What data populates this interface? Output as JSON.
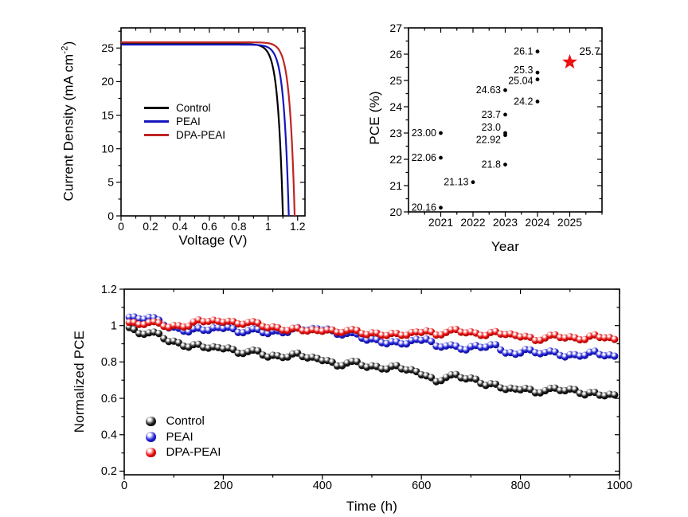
{
  "background": "#ffffff",
  "chart_data": [
    {
      "id": "jv_curves",
      "type": "line",
      "title": "",
      "xlabel": "Voltage (V)",
      "ylabel_main": "Current Density (mA cm",
      "ylabel_sup": "-2",
      "ylabel_close": ")",
      "xlim": [
        0,
        1.25
      ],
      "ylim": [
        0,
        28
      ],
      "xticks": [
        {
          "v": 0,
          "label": "0"
        },
        {
          "v": 0.2,
          "label": "0.2"
        },
        {
          "v": 0.4,
          "label": "0.4"
        },
        {
          "v": 0.6,
          "label": "0.6"
        },
        {
          "v": 0.8,
          "label": "0.8"
        },
        {
          "v": 1.0,
          "label": "1"
        },
        {
          "v": 1.2,
          "label": "1.2"
        }
      ],
      "yticks": [
        {
          "v": 0,
          "label": "0"
        },
        {
          "v": 5,
          "label": "5"
        },
        {
          "v": 10,
          "label": "10"
        },
        {
          "v": 15,
          "label": "15"
        },
        {
          "v": 20,
          "label": "20"
        },
        {
          "v": 25,
          "label": "25"
        }
      ],
      "xminor_step": 0.1,
      "yminor_step": 2.5,
      "series": [
        {
          "name": "Control",
          "color": "#000000",
          "jsc": 25.6,
          "voc": 1.1
        },
        {
          "name": "PEAI",
          "color": "#1515bb",
          "jsc": 25.5,
          "voc": 1.14
        },
        {
          "name": "DPA-PEAI",
          "color": "#c02424",
          "jsc": 25.85,
          "voc": 1.18
        }
      ],
      "legend_position": "center-left",
      "grid": false
    },
    {
      "id": "pce_progress",
      "type": "scatter",
      "title": "",
      "xlabel": "Year",
      "ylabel": "PCE (%)",
      "xlim": [
        2020,
        2026
      ],
      "ylim": [
        20,
        27
      ],
      "xticks": [
        {
          "v": 2021,
          "label": "2021"
        },
        {
          "v": 2022,
          "label": "2022"
        },
        {
          "v": 2023,
          "label": "2023"
        },
        {
          "v": 2024,
          "label": "2024"
        },
        {
          "v": 2025,
          "label": "2025"
        }
      ],
      "yticks": [
        {
          "v": 20,
          "label": "20"
        },
        {
          "v": 21,
          "label": "21"
        },
        {
          "v": 22,
          "label": "22"
        },
        {
          "v": 23,
          "label": "23"
        },
        {
          "v": 24,
          "label": "24"
        },
        {
          "v": 25,
          "label": "25"
        },
        {
          "v": 26,
          "label": "26"
        },
        {
          "v": 27,
          "label": "27"
        }
      ],
      "xminor_step": 0.5,
      "yminor_step": 0.5,
      "point_color": "#000000",
      "points": [
        {
          "x": 2021,
          "y": 20.16,
          "label": "20.16"
        },
        {
          "x": 2021,
          "y": 22.06,
          "label": "22.06"
        },
        {
          "x": 2021,
          "y": 23.0,
          "label": "23.00"
        },
        {
          "x": 2022,
          "y": 21.13,
          "label": "21.13"
        },
        {
          "x": 2023,
          "y": 21.8,
          "label": "21.8"
        },
        {
          "x": 2023,
          "y": 22.92,
          "label": "22.92",
          "ldy": 6
        },
        {
          "x": 2023,
          "y": 23.0,
          "label": "23.0",
          "ldy": -7
        },
        {
          "x": 2023,
          "y": 23.7,
          "label": "23.7"
        },
        {
          "x": 2023,
          "y": 24.63,
          "label": "24.63"
        },
        {
          "x": 2024,
          "y": 24.2,
          "label": "24.2"
        },
        {
          "x": 2024,
          "y": 25.04,
          "label": "25.04",
          "ldy": 2
        },
        {
          "x": 2024,
          "y": 25.3,
          "label": "25.3",
          "ldy": -3
        },
        {
          "x": 2024,
          "y": 26.1,
          "label": "26.1"
        }
      ],
      "star": {
        "x": 2025,
        "y": 25.7,
        "label": "25.7",
        "color": "#ee1111"
      },
      "grid": false
    },
    {
      "id": "stability",
      "type": "scatter",
      "title": "",
      "xlabel": "Time (h)",
      "ylabel": "Normalized PCE",
      "xlim": [
        0,
        1000
      ],
      "ylim": [
        0.18,
        1.2
      ],
      "xticks": [
        {
          "v": 0,
          "label": "0"
        },
        {
          "v": 200,
          "label": "200"
        },
        {
          "v": 400,
          "label": "400"
        },
        {
          "v": 600,
          "label": "600"
        },
        {
          "v": 800,
          "label": "800"
        },
        {
          "v": 1000,
          "label": "1000"
        }
      ],
      "yticks": [
        {
          "v": 0.2,
          "label": "0.2"
        },
        {
          "v": 0.4,
          "label": "0.4"
        },
        {
          "v": 0.6,
          "label": "0.6"
        },
        {
          "v": 0.8,
          "label": "0.8"
        },
        {
          "v": 1.0,
          "label": "1"
        },
        {
          "v": 1.2,
          "label": "1.2"
        }
      ],
      "xminor_step": 100,
      "yminor_step": 0.1,
      "midpoint_jitter": 0.006,
      "t": [
        10,
        30,
        50,
        70,
        90,
        110,
        130,
        150,
        170,
        190,
        210,
        230,
        250,
        270,
        290,
        310,
        330,
        350,
        370,
        390,
        410,
        430,
        450,
        470,
        490,
        510,
        530,
        550,
        570,
        590,
        610,
        630,
        650,
        670,
        690,
        710,
        730,
        750,
        770,
        790,
        810,
        830,
        850,
        870,
        890,
        910,
        930,
        950,
        970,
        990
      ],
      "series": [
        {
          "name": "Control",
          "color": "#1c1c1c",
          "edge": "#000000",
          "values": [
            0.989,
            0.956,
            0.96,
            0.956,
            0.912,
            0.905,
            0.881,
            0.897,
            0.876,
            0.879,
            0.877,
            0.848,
            0.857,
            0.861,
            0.827,
            0.834,
            0.827,
            0.849,
            0.822,
            0.819,
            0.808,
            0.778,
            0.794,
            0.802,
            0.771,
            0.775,
            0.761,
            0.78,
            0.756,
            0.747,
            0.724,
            0.692,
            0.715,
            0.731,
            0.707,
            0.705,
            0.671,
            0.678,
            0.649,
            0.651,
            0.655,
            0.631,
            0.642,
            0.656,
            0.642,
            0.648,
            0.619,
            0.633,
            0.614,
            0.619
          ]
        },
        {
          "name": "PEAI",
          "color": "#2020d6",
          "edge": "#0a0a77",
          "values": [
            1.046,
            1.037,
            1.045,
            1.03,
            0.987,
            0.985,
            0.965,
            0.986,
            0.974,
            0.989,
            0.991,
            0.962,
            0.972,
            0.979,
            0.956,
            0.971,
            0.962,
            0.989,
            0.975,
            0.982,
            0.981,
            0.952,
            0.957,
            0.954,
            0.92,
            0.923,
            0.9,
            0.911,
            0.899,
            0.924,
            0.926,
            0.887,
            0.888,
            0.887,
            0.866,
            0.891,
            0.881,
            0.895,
            0.849,
            0.842,
            0.869,
            0.851,
            0.852,
            0.855,
            0.828,
            0.84,
            0.836,
            0.859,
            0.834,
            0.832
          ]
        },
        {
          "name": "DPA-PEAI",
          "color": "#e81010",
          "edge": "#8f0000",
          "values": [
            1.017,
            1.006,
            1.017,
            1.014,
            0.99,
            0.999,
            0.997,
            1.031,
            1.023,
            1.024,
            1.024,
            1.009,
            1.017,
            1.014,
            0.987,
            0.988,
            0.972,
            0.986,
            0.97,
            0.973,
            0.976,
            0.963,
            0.973,
            0.973,
            0.95,
            0.959,
            0.945,
            0.957,
            0.947,
            0.965,
            0.971,
            0.948,
            0.962,
            0.979,
            0.96,
            0.959,
            0.945,
            0.967,
            0.951,
            0.946,
            0.941,
            0.918,
            0.932,
            0.949,
            0.932,
            0.933,
            0.923,
            0.949,
            0.933,
            0.924
          ]
        }
      ],
      "legend_position": "lower-left",
      "grid": false
    }
  ]
}
